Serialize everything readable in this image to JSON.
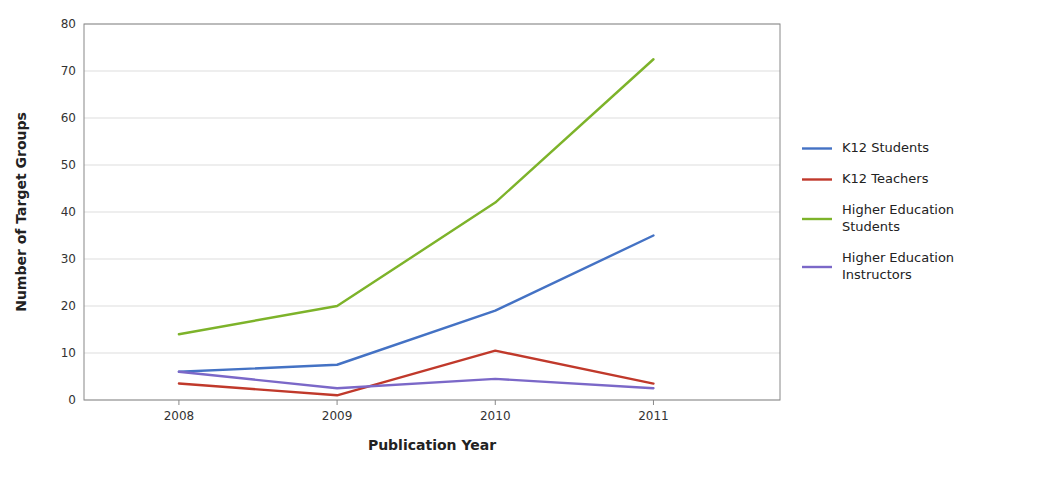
{
  "chart_data": {
    "type": "line",
    "x": [
      2008,
      2009,
      2010,
      2011
    ],
    "series": [
      {
        "name": "K12 Students",
        "color": "#4472C4",
        "values": [
          6,
          7.5,
          19,
          35
        ]
      },
      {
        "name": "K12 Teachers",
        "color": "#C0392B",
        "values": [
          3.5,
          1,
          10.5,
          3.5
        ]
      },
      {
        "name": "Higher Education\nStudents",
        "color": "#7DB32A",
        "values": [
          14,
          20,
          42,
          72.5
        ]
      },
      {
        "name": "Higher Education\nInstructors",
        "color": "#7B68C8",
        "values": [
          6,
          2.5,
          4.5,
          2.5
        ]
      }
    ],
    "xlabel": "Publication Year",
    "ylabel": "Number of Target Groups",
    "xlim": [
      2007.4,
      2011.8
    ],
    "ylim": [
      0,
      80
    ],
    "yticks": [
      0,
      10,
      20,
      30,
      40,
      50,
      60,
      70,
      80
    ],
    "xticks": [
      2008,
      2009,
      2010,
      2011
    ],
    "grid": true,
    "legend": "right"
  }
}
